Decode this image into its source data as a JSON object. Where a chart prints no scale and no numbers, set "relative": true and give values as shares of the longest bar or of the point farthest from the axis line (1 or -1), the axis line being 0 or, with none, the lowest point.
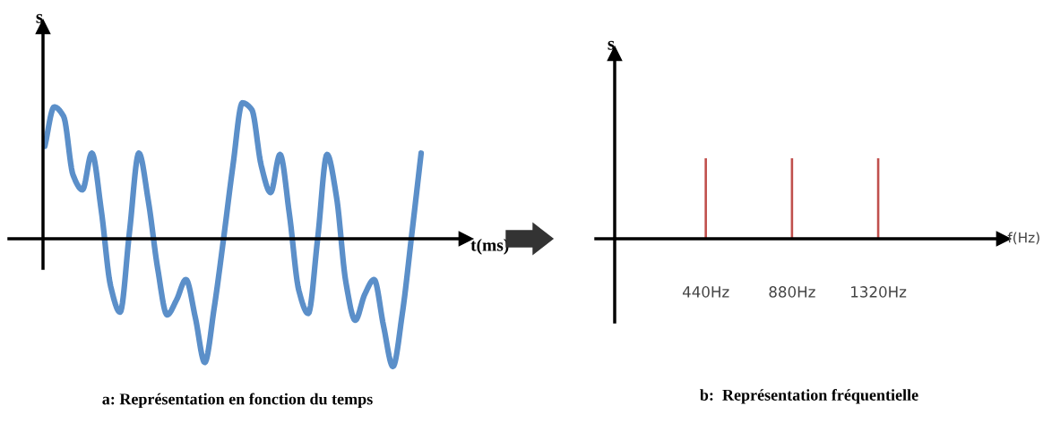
{
  "chart_data": [
    {
      "type": "line",
      "relative": true,
      "title": "a: Représentation en fonction du temps",
      "xlabel": "t(ms)",
      "ylabel": "s",
      "tick_labels": false,
      "categories": [
        null,
        null,
        null,
        null,
        null,
        null,
        null,
        null,
        null,
        null,
        null,
        null,
        null,
        null,
        null,
        null,
        null,
        null,
        null,
        null,
        null,
        null,
        null,
        null,
        null,
        null,
        null,
        null,
        null,
        null,
        null,
        null,
        null,
        null,
        null,
        null,
        null,
        null,
        null,
        null,
        null
      ],
      "series": [
        {
          "color": "#5b8fc9",
          "values": [
            0.68,
            0.97,
            0.9,
            0.47,
            0.36,
            0.63,
            0.21,
            -0.35,
            -0.54,
            0.05,
            0.63,
            0.28,
            -0.22,
            -0.56,
            -0.45,
            -0.3,
            -0.58,
            -0.91,
            -0.51,
            0,
            0.54,
            1.0,
            0.95,
            0.54,
            0.34,
            0.62,
            0.18,
            -0.38,
            -0.55,
            0,
            0.62,
            0.31,
            -0.32,
            -0.6,
            -0.41,
            -0.3,
            -0.64,
            -0.94,
            -0.55,
            0.03,
            0.63
          ]
        }
      ]
    },
    {
      "type": "bar",
      "relative": true,
      "title": "b:  Représentation fréquentielle",
      "xlabel": "f(Hz)",
      "ylabel": "s",
      "tick_labels": "x",
      "x": [
        440,
        880,
        1320
      ],
      "xlim": [
        -25,
        1960
      ],
      "xticks": [
        {
          "value": 440,
          "label": "440Hz"
        },
        {
          "value": 880,
          "label": "880Hz"
        },
        {
          "value": 1320,
          "label": "1320Hz"
        }
      ],
      "series": [
        {
          "color": "#c0504d",
          "values": [
            1,
            1,
            1
          ]
        }
      ]
    }
  ]
}
